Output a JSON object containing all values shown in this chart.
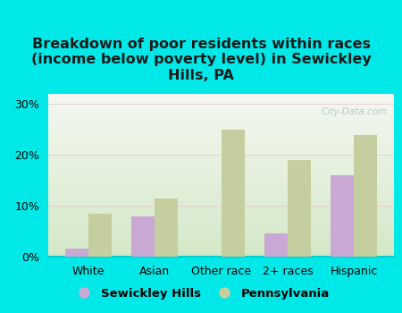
{
  "title": "Breakdown of poor residents within races\n(income below poverty level) in Sewickley\nHills, PA",
  "categories": [
    "White",
    "Asian",
    "Other race",
    "2+ races",
    "Hispanic"
  ],
  "sewickley_values": [
    1.5,
    8.0,
    0.0,
    4.5,
    16.0
  ],
  "pennsylvania_values": [
    8.5,
    11.5,
    25.0,
    19.0,
    24.0
  ],
  "sewickley_color": "#c9a8d4",
  "pennsylvania_color": "#c5ce9e",
  "background_outer": "#00e8e8",
  "background_plot_bottom": "#d4e8c8",
  "background_plot_top": "#f5f8f2",
  "ylim": [
    0,
    32
  ],
  "yticks": [
    0,
    10,
    20,
    30
  ],
  "ytick_labels": [
    "0%",
    "10%",
    "20%",
    "30%"
  ],
  "bar_width": 0.35,
  "legend_labels": [
    "Sewickley Hills",
    "Pennsylvania"
  ],
  "watermark": "City-Data.com",
  "title_fontsize": 11.5,
  "tick_fontsize": 9,
  "legend_fontsize": 9.5
}
